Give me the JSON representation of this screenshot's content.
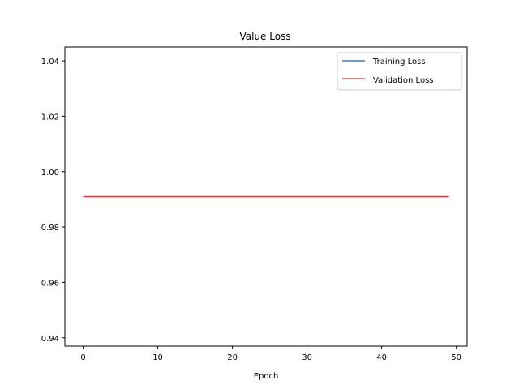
{
  "chart_data": {
    "type": "line",
    "title": "Value Loss",
    "xlabel": "Epoch",
    "ylabel": "",
    "xlim": [
      -2.45,
      51.45
    ],
    "ylim": [
      0.937,
      1.045
    ],
    "xticks": [
      0,
      10,
      20,
      30,
      40,
      50
    ],
    "xtick_labels": [
      "0",
      "10",
      "20",
      "30",
      "40",
      "50"
    ],
    "yticks": [
      0.94,
      0.96,
      0.98,
      1.0,
      1.02,
      1.04
    ],
    "ytick_labels": [
      "0.94",
      "0.96",
      "0.98",
      "1.00",
      "1.02",
      "1.04"
    ],
    "grid": false,
    "legend_position": "top-right",
    "x": [
      0,
      1,
      2,
      3,
      4,
      5,
      6,
      7,
      8,
      9,
      10,
      11,
      12,
      13,
      14,
      15,
      16,
      17,
      18,
      19,
      20,
      21,
      22,
      23,
      24,
      25,
      26,
      27,
      28,
      29,
      30,
      31,
      32,
      33,
      34,
      35,
      36,
      37,
      38,
      39,
      40,
      41,
      42,
      43,
      44,
      45,
      46,
      47,
      48,
      49
    ],
    "series": [
      {
        "name": "Training Loss",
        "color": "#1f5fb4",
        "values": [
          0.991,
          0.991,
          0.991,
          0.991,
          0.991,
          0.991,
          0.991,
          0.991,
          0.991,
          0.991,
          0.991,
          0.991,
          0.991,
          0.991,
          0.991,
          0.991,
          0.991,
          0.991,
          0.991,
          0.991,
          0.991,
          0.991,
          0.991,
          0.991,
          0.991,
          0.991,
          0.991,
          0.991,
          0.991,
          0.991,
          0.991,
          0.991,
          0.991,
          0.991,
          0.991,
          0.991,
          0.991,
          0.991,
          0.991,
          0.991,
          0.991,
          0.991,
          0.991,
          0.991,
          0.991,
          0.991,
          0.991,
          0.991,
          0.991,
          0.991
        ]
      },
      {
        "name": "Validation Loss",
        "color": "#e8333f",
        "values": [
          0.991,
          0.991,
          0.991,
          0.991,
          0.991,
          0.991,
          0.991,
          0.991,
          0.991,
          0.991,
          0.991,
          0.991,
          0.991,
          0.991,
          0.991,
          0.991,
          0.991,
          0.991,
          0.991,
          0.991,
          0.991,
          0.991,
          0.991,
          0.991,
          0.991,
          0.991,
          0.991,
          0.991,
          0.991,
          0.991,
          0.991,
          0.991,
          0.991,
          0.991,
          0.991,
          0.991,
          0.991,
          0.991,
          0.991,
          0.991,
          0.991,
          0.991,
          0.991,
          0.991,
          0.991,
          0.991,
          0.991,
          0.991,
          0.991,
          0.991
        ]
      }
    ]
  }
}
